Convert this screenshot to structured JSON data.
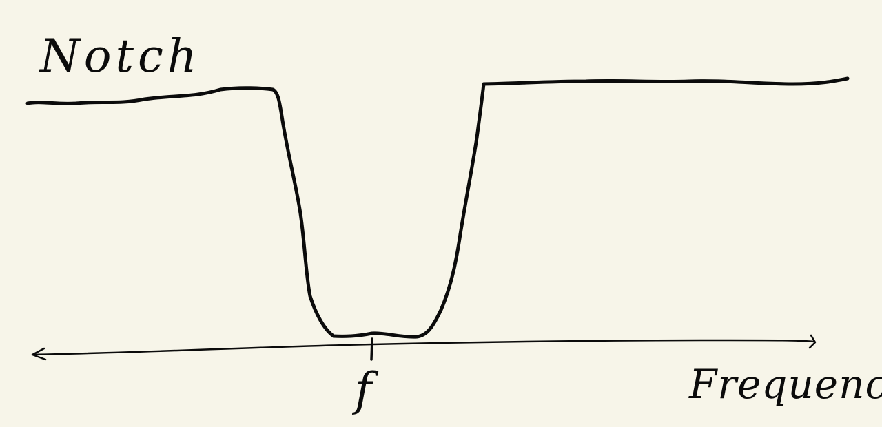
{
  "diagram": {
    "title": "Notch",
    "x_axis_label": "Frequency",
    "center_marker_label": "f",
    "ink_color": "#0b0b0b",
    "paper_color": "#f7f5e9"
  }
}
